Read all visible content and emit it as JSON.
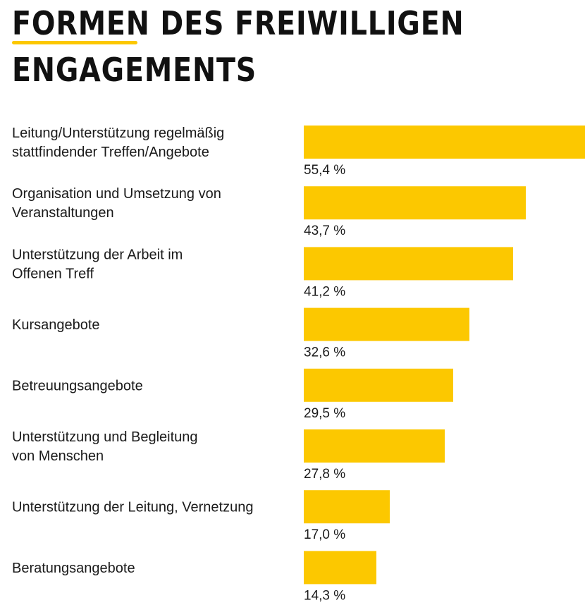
{
  "title": {
    "line1": "FORMEN DES FREIWILLIGEN",
    "line2": "ENGAGEMENTS"
  },
  "colors": {
    "bar": "#FCC800",
    "accent_underline": "#FCC800",
    "text": "#1a1a1a"
  },
  "chart_data": {
    "type": "bar",
    "orientation": "horizontal",
    "title": "FORMEN DES FREIWILLIGEN ENGAGEMENTS",
    "categories": [
      [
        "Leitung/Unterstützung regelmäßig",
        "stattfindender Treffen/Angebote"
      ],
      [
        "Organisation und Umsetzung von",
        "Veranstaltungen"
      ],
      [
        "Unterstützung der Arbeit im",
        "Offenen Treff"
      ],
      [
        "Kursangebote"
      ],
      [
        "Betreuungsangebote"
      ],
      [
        "Unterstützung und Begleitung",
        "von Menschen"
      ],
      [
        "Unterstützung der Leitung, Vernetzung"
      ],
      [
        "Beratungsangebote"
      ]
    ],
    "values": [
      55.4,
      43.7,
      41.2,
      32.6,
      29.5,
      27.8,
      17.0,
      14.3
    ],
    "value_labels": [
      "55,4 %",
      "43,7 %",
      "41,2 %",
      "32,6 %",
      "29,5 %",
      "27,8 %",
      "17,0 %",
      "14,3 %"
    ],
    "unit": "%",
    "xlim": [
      0,
      55.4
    ],
    "grid": false,
    "legend": "none"
  }
}
